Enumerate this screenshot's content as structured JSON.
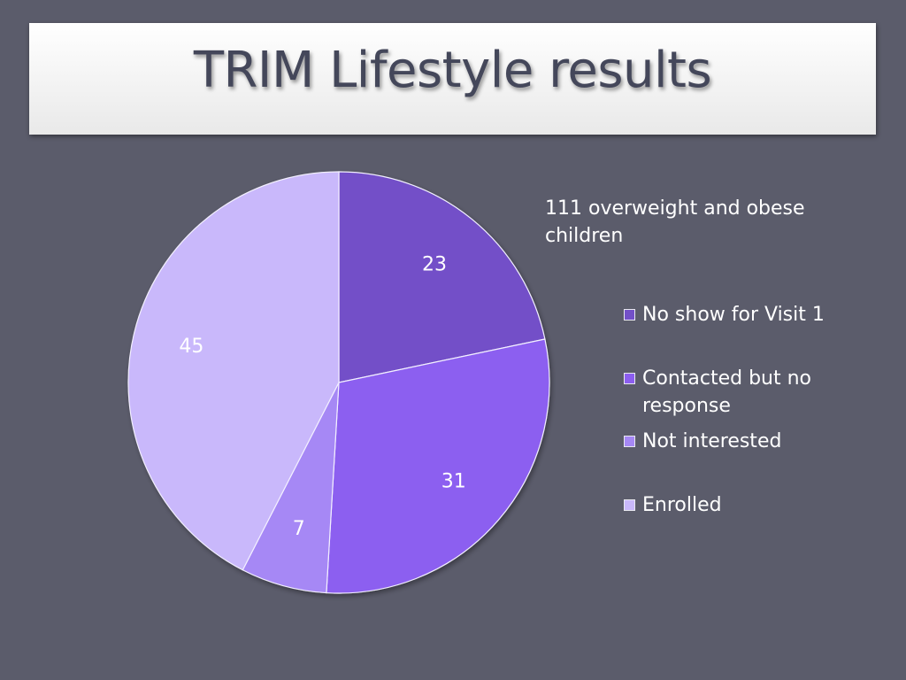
{
  "title": "TRIM Lifestyle results",
  "chart_data": {
    "type": "pie",
    "subtitle": "111 overweight and obese children",
    "categories": [
      "No show for Visit 1",
      "Contacted but no response",
      "Not interested",
      "Enrolled"
    ],
    "values": [
      23,
      31,
      7,
      45
    ],
    "colors": [
      "#7350c8",
      "#8c5ef0",
      "#a688f5",
      "#c9b8fb"
    ],
    "data_labels_shown": true,
    "legend_position": "right"
  },
  "colors": {
    "background": "#5b5c6b",
    "title_text": "#44475a",
    "label_text": "#ffffff"
  }
}
